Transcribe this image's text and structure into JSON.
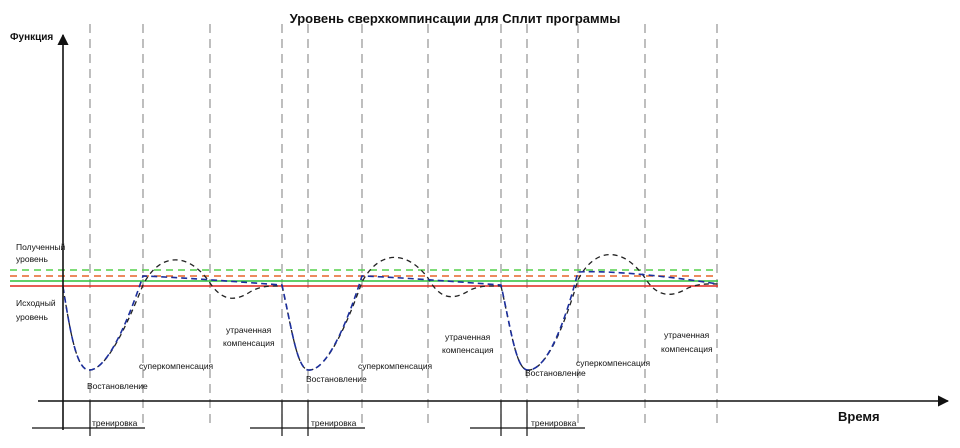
{
  "title": "Уровень сверхкомпинсации для Сплит программы",
  "axes": {
    "y_label": "Функция",
    "x_label": "Время"
  },
  "levels": {
    "achieved": [
      "Полученный",
      "уровень"
    ],
    "initial": [
      "Исходный",
      "уровень"
    ]
  },
  "cycles": [
    {
      "recovery": "Востановление",
      "supercompensation": "суперкомпенсация",
      "lost": [
        "утраченная",
        "компенсация"
      ],
      "training": "тренировка"
    },
    {
      "recovery": "Востановление",
      "supercompensation": "суперкомпенсация",
      "lost": [
        "утраченная",
        "компенсация"
      ],
      "training": "тренировка"
    },
    {
      "recovery": "Востановление",
      "supercompensation": "суперкомпенсация",
      "lost": [
        "утраченная",
        "компенсация"
      ],
      "training": "тренировка"
    }
  ],
  "colors": {
    "axis": "#111111",
    "phase_divider": "#8a8a8a",
    "initial_level": "#e0261f",
    "achieved_level": "#e6632a",
    "green_solid": "#2fbf3a",
    "green_dashed": "#55d04c",
    "progress_curve": "#1c2f9c",
    "single_curve": "#222222"
  }
}
